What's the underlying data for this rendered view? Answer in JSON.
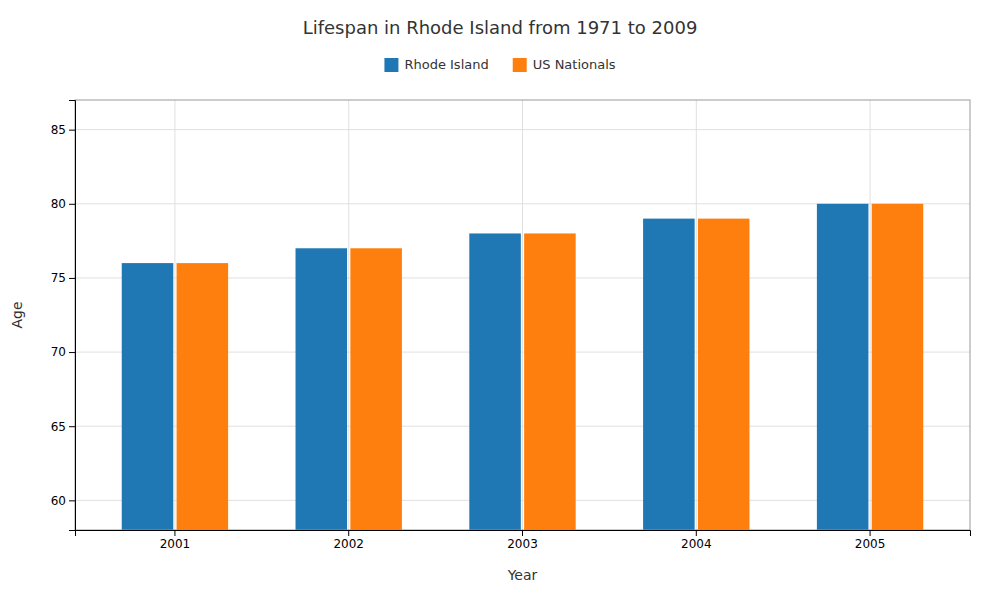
{
  "chart_data": {
    "type": "bar",
    "title": "Lifespan in Rhode Island from 1971 to 2009",
    "xlabel": "Year",
    "ylabel": "Age",
    "categories": [
      "2001",
      "2002",
      "2003",
      "2004",
      "2005"
    ],
    "series": [
      {
        "name": "Rhode Island",
        "values": [
          76.0,
          77.0,
          78.0,
          79.0,
          80.0
        ]
      },
      {
        "name": "US Nationals",
        "values": [
          76.0,
          77.0,
          78.0,
          79.0,
          80.0
        ]
      }
    ],
    "ylim": [
      58,
      87
    ],
    "yticks": [
      60,
      65,
      70,
      75,
      80,
      85
    ],
    "grid": true,
    "legend": "top"
  }
}
